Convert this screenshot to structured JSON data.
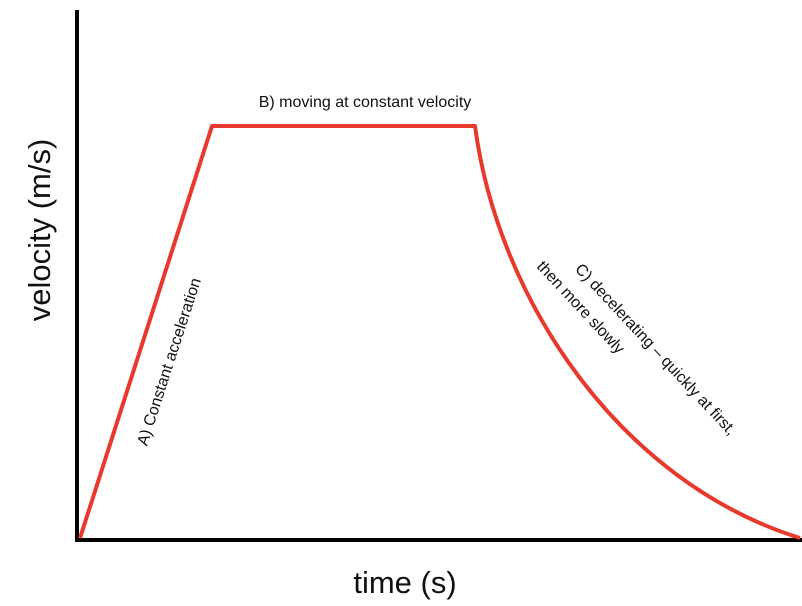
{
  "axes": {
    "x_label": "time (s)",
    "y_label": "velocity (m/s)"
  },
  "annotations": {
    "a": "A) Constant acceleration",
    "b": "B) moving at constant velocity",
    "c_line1": "C) decelerating – quickly at first,",
    "c_line2": "then more slowly"
  }
}
